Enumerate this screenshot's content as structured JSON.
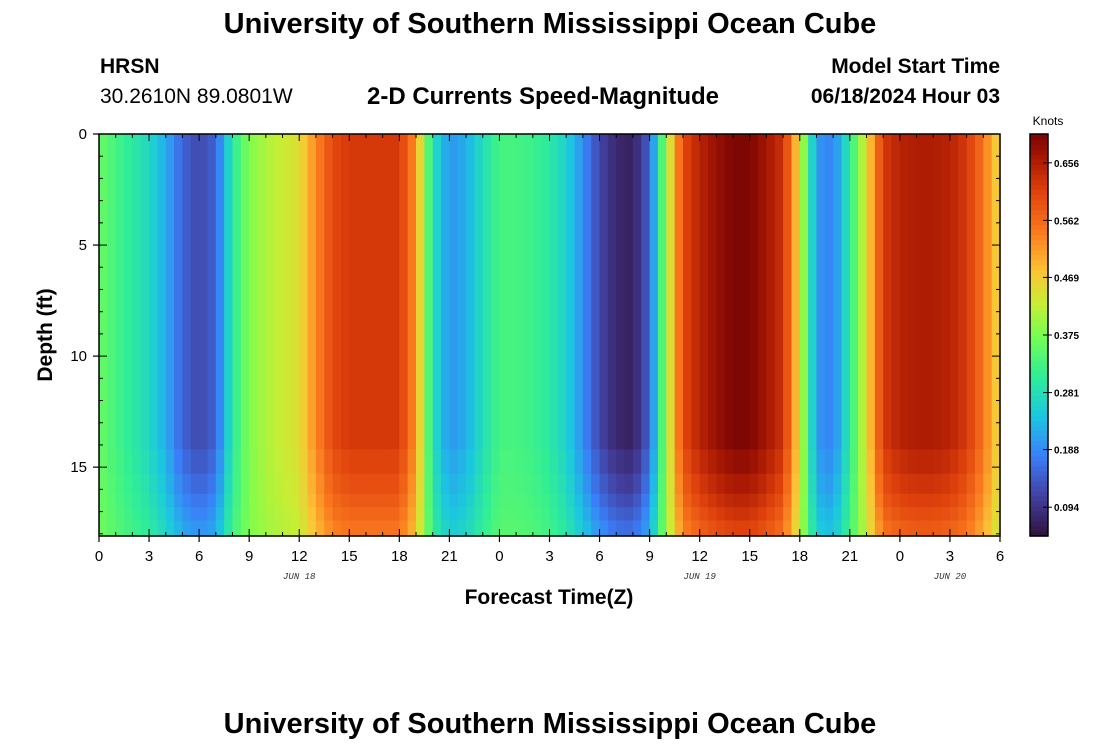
{
  "header": {
    "title": "University of Southern Mississippi Ocean Cube",
    "station_code": "HRSN",
    "station_coords": "30.2610N  89.0801W",
    "plot_title": "2-D Currents Speed-Magnitude",
    "model_start_label": "Model Start Time",
    "model_start_value": "06/18/2024 Hour 03"
  },
  "footer": {
    "title": "University of Southern Mississippi Ocean Cube"
  },
  "chart_data": {
    "type": "heatmap",
    "title": "2-D Currents Speed-Magnitude",
    "xlabel": "Forecast Time(Z)",
    "ylabel": "Depth (ft)",
    "x_ticks": [
      "0",
      "3",
      "6",
      "9",
      "12",
      "15",
      "18",
      "21",
      "0",
      "3",
      "6",
      "9",
      "12",
      "15",
      "18",
      "21",
      "0",
      "3",
      "6"
    ],
    "x_range_hours": [
      0,
      54
    ],
    "date_labels": [
      {
        "text": "JUN 18",
        "hour": 12
      },
      {
        "text": "JUN 19",
        "hour": 36
      },
      {
        "text": "JUN 20",
        "hour": 51
      }
    ],
    "y_ticks": [
      "0",
      "5",
      "10",
      "15"
    ],
    "y_range_ft": [
      0,
      18.1
    ],
    "colorbar": {
      "label": "Knots",
      "ticks": [
        "0.656",
        "0.562",
        "0.469",
        "0.375",
        "0.281",
        "0.188",
        "0.094"
      ],
      "tick_values": [
        0.656,
        0.562,
        0.469,
        0.375,
        0.281,
        0.188,
        0.094
      ],
      "range": [
        0.047,
        0.703
      ]
    },
    "surface_speed_knots_by_hour": [
      {
        "hour": 0,
        "value": 0.36
      },
      {
        "hour": 1,
        "value": 0.33
      },
      {
        "hour": 2,
        "value": 0.3
      },
      {
        "hour": 3,
        "value": 0.27
      },
      {
        "hour": 4,
        "value": 0.22
      },
      {
        "hour": 5,
        "value": 0.15
      },
      {
        "hour": 6,
        "value": 0.12
      },
      {
        "hour": 7,
        "value": 0.15
      },
      {
        "hour": 8,
        "value": 0.3
      },
      {
        "hour": 9,
        "value": 0.38
      },
      {
        "hour": 10,
        "value": 0.41
      },
      {
        "hour": 11,
        "value": 0.43
      },
      {
        "hour": 12,
        "value": 0.45
      },
      {
        "hour": 13,
        "value": 0.53
      },
      {
        "hour": 14,
        "value": 0.6
      },
      {
        "hour": 15,
        "value": 0.62
      },
      {
        "hour": 16,
        "value": 0.62
      },
      {
        "hour": 17,
        "value": 0.62
      },
      {
        "hour": 18,
        "value": 0.62
      },
      {
        "hour": 19,
        "value": 0.52
      },
      {
        "hour": 20,
        "value": 0.28
      },
      {
        "hour": 21,
        "value": 0.2
      },
      {
        "hour": 22,
        "value": 0.22
      },
      {
        "hour": 23,
        "value": 0.28
      },
      {
        "hour": 24,
        "value": 0.33
      },
      {
        "hour": 25,
        "value": 0.33
      },
      {
        "hour": 26,
        "value": 0.32
      },
      {
        "hour": 27,
        "value": 0.3
      },
      {
        "hour": 28,
        "value": 0.26
      },
      {
        "hour": 29,
        "value": 0.19
      },
      {
        "hour": 30,
        "value": 0.12
      },
      {
        "hour": 31,
        "value": 0.08
      },
      {
        "hour": 32,
        "value": 0.07
      },
      {
        "hour": 33,
        "value": 0.15
      },
      {
        "hour": 34,
        "value": 0.4
      },
      {
        "hour": 35,
        "value": 0.6
      },
      {
        "hour": 36,
        "value": 0.65
      },
      {
        "hour": 37,
        "value": 0.68
      },
      {
        "hour": 38,
        "value": 0.7
      },
      {
        "hour": 39,
        "value": 0.7
      },
      {
        "hour": 40,
        "value": 0.67
      },
      {
        "hour": 41,
        "value": 0.63
      },
      {
        "hour": 42,
        "value": 0.45
      },
      {
        "hour": 43,
        "value": 0.2
      },
      {
        "hour": 44,
        "value": 0.18
      },
      {
        "hour": 45,
        "value": 0.3
      },
      {
        "hour": 46,
        "value": 0.45
      },
      {
        "hour": 47,
        "value": 0.62
      },
      {
        "hour": 48,
        "value": 0.65
      },
      {
        "hour": 49,
        "value": 0.66
      },
      {
        "hour": 50,
        "value": 0.66
      },
      {
        "hour": 51,
        "value": 0.65
      },
      {
        "hour": 52,
        "value": 0.62
      },
      {
        "hour": 53,
        "value": 0.55
      },
      {
        "hour": 54,
        "value": 0.45
      }
    ],
    "depth_profile_note": "Speed is nearly uniform with depth; bottom rows (below ~15 ft) are slightly weaker in strong flow and slightly stronger in weak flow."
  }
}
